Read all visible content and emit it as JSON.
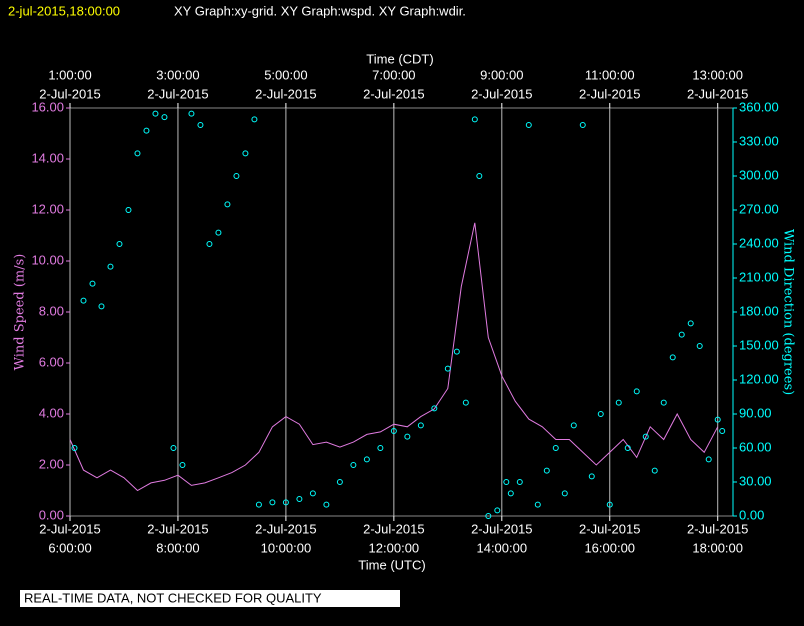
{
  "chart_data": {
    "type": "line_scatter",
    "timestamp": "2-jul-2015,18:00:00",
    "title": "XY Graph:xy-grid.  XY Graph:wspd.  XY Graph:wdir.",
    "x_label": "Time (UTC)",
    "x2_label": "Time (CDT)",
    "y_label": "Wind Speed (m/s)",
    "y2_label": "Wind Direction (degrees)",
    "footer": "REAL-TIME DATA, NOT CHECKED FOR QUALITY",
    "grid": true,
    "xlim": [
      "2015-07-02T06:00",
      "2015-07-02T18:17"
    ],
    "xticks": [
      {
        "value": "2015-07-02T06:00",
        "label": [
          "2-Jul-2015",
          "6:00:00"
        ]
      },
      {
        "value": "2015-07-02T08:00",
        "label": [
          "2-Jul-2015",
          "8:00:00"
        ]
      },
      {
        "value": "2015-07-02T10:00",
        "label": [
          "2-Jul-2015",
          "10:00:00"
        ]
      },
      {
        "value": "2015-07-02T12:00",
        "label": [
          "2-Jul-2015",
          "12:00:00"
        ]
      },
      {
        "value": "2015-07-02T14:00",
        "label": [
          "2-Jul-2015",
          "14:00:00"
        ]
      },
      {
        "value": "2015-07-02T16:00",
        "label": [
          "2-Jul-2015",
          "16:00:00"
        ]
      },
      {
        "value": "2015-07-02T18:00",
        "label": [
          "2-Jul-2015",
          "18:00:00"
        ]
      }
    ],
    "x2ticks": [
      {
        "value": "2015-07-02T06:00",
        "label": [
          "1:00:00",
          "2-Jul-2015"
        ]
      },
      {
        "value": "2015-07-02T08:00",
        "label": [
          "3:00:00",
          "2-Jul-2015"
        ]
      },
      {
        "value": "2015-07-02T10:00",
        "label": [
          "5:00:00",
          "2-Jul-2015"
        ]
      },
      {
        "value": "2015-07-02T12:00",
        "label": [
          "7:00:00",
          "2-Jul-2015"
        ]
      },
      {
        "value": "2015-07-02T14:00",
        "label": [
          "9:00:00",
          "2-Jul-2015"
        ]
      },
      {
        "value": "2015-07-02T16:00",
        "label": [
          "11:00:00",
          "2-Jul-2015"
        ]
      },
      {
        "value": "2015-07-02T18:00",
        "label": [
          "13:00:00",
          "2-Jul-2015"
        ]
      }
    ],
    "ylim": [
      0,
      16
    ],
    "yticks": [
      {
        "value": 0,
        "label": "0.00"
      },
      {
        "value": 2,
        "label": "2.00"
      },
      {
        "value": 4,
        "label": "4.00"
      },
      {
        "value": 6,
        "label": "6.00"
      },
      {
        "value": 8,
        "label": "8.00"
      },
      {
        "value": 10,
        "label": "10.00"
      },
      {
        "value": 12,
        "label": "12.00"
      },
      {
        "value": 14,
        "label": "14.00"
      },
      {
        "value": 16,
        "label": "16.00"
      }
    ],
    "y2lim": [
      0,
      360
    ],
    "y2ticks": [
      {
        "value": 0,
        "label": "0.00"
      },
      {
        "value": 30,
        "label": "30.00"
      },
      {
        "value": 60,
        "label": "60.00"
      },
      {
        "value": 90,
        "label": "90.00"
      },
      {
        "value": 120,
        "label": "120.00"
      },
      {
        "value": 150,
        "label": "150.00"
      },
      {
        "value": 180,
        "label": "180.00"
      },
      {
        "value": 210,
        "label": "210.00"
      },
      {
        "value": 240,
        "label": "240.00"
      },
      {
        "value": 270,
        "label": "270.00"
      },
      {
        "value": 300,
        "label": "300.00"
      },
      {
        "value": 330,
        "label": "330.00"
      },
      {
        "value": 360,
        "label": "360.00"
      }
    ],
    "series": [
      {
        "kind": "line",
        "color": "#e07be0",
        "x": [
          "2015-07-02T06:00",
          "2015-07-02T06:15",
          "2015-07-02T06:30",
          "2015-07-02T06:45",
          "2015-07-02T07:00",
          "2015-07-02T07:15",
          "2015-07-02T07:30",
          "2015-07-02T07:45",
          "2015-07-02T08:00",
          "2015-07-02T08:15",
          "2015-07-02T08:30",
          "2015-07-02T08:45",
          "2015-07-02T09:00",
          "2015-07-02T09:15",
          "2015-07-02T09:30",
          "2015-07-02T09:45",
          "2015-07-02T10:00",
          "2015-07-02T10:15",
          "2015-07-02T10:30",
          "2015-07-02T10:45",
          "2015-07-02T11:00",
          "2015-07-02T11:15",
          "2015-07-02T11:30",
          "2015-07-02T11:45",
          "2015-07-02T12:00",
          "2015-07-02T12:15",
          "2015-07-02T12:30",
          "2015-07-02T12:45",
          "2015-07-02T13:00",
          "2015-07-02T13:15",
          "2015-07-02T13:30",
          "2015-07-02T13:45",
          "2015-07-02T14:00",
          "2015-07-02T14:15",
          "2015-07-02T14:30",
          "2015-07-02T14:45",
          "2015-07-02T15:00",
          "2015-07-02T15:15",
          "2015-07-02T15:30",
          "2015-07-02T15:45",
          "2015-07-02T16:00",
          "2015-07-02T16:15",
          "2015-07-02T16:30",
          "2015-07-02T16:45",
          "2015-07-02T17:00",
          "2015-07-02T17:15",
          "2015-07-02T17:30",
          "2015-07-02T17:45",
          "2015-07-02T18:00"
        ],
        "values": [
          3.0,
          1.8,
          1.5,
          1.8,
          1.5,
          1.0,
          1.3,
          1.4,
          1.6,
          1.2,
          1.3,
          1.5,
          1.7,
          2.0,
          2.5,
          3.5,
          3.9,
          3.6,
          2.8,
          2.9,
          2.7,
          2.9,
          3.2,
          3.3,
          3.6,
          3.5,
          3.9,
          4.2,
          5.0,
          9.0,
          11.5,
          7.0,
          5.5,
          4.5,
          3.8,
          3.5,
          3.0,
          3.0,
          2.5,
          2.0,
          2.5,
          3.0,
          2.3,
          3.5,
          3.0,
          4.0,
          3.0,
          2.5,
          3.5
        ]
      },
      {
        "kind": "scatter",
        "axis": "y2",
        "color": "#00ffff",
        "x": [
          "2015-07-02T06:05",
          "2015-07-02T06:15",
          "2015-07-02T06:25",
          "2015-07-02T06:35",
          "2015-07-02T06:45",
          "2015-07-02T06:55",
          "2015-07-02T07:05",
          "2015-07-02T07:15",
          "2015-07-02T07:25",
          "2015-07-02T07:35",
          "2015-07-02T07:45",
          "2015-07-02T07:55",
          "2015-07-02T08:05",
          "2015-07-02T08:15",
          "2015-07-02T08:25",
          "2015-07-02T08:35",
          "2015-07-02T08:45",
          "2015-07-02T08:55",
          "2015-07-02T09:05",
          "2015-07-02T09:15",
          "2015-07-02T09:25",
          "2015-07-02T09:30",
          "2015-07-02T09:45",
          "2015-07-02T10:00",
          "2015-07-02T10:15",
          "2015-07-02T10:30",
          "2015-07-02T10:45",
          "2015-07-02T11:00",
          "2015-07-02T11:15",
          "2015-07-02T11:30",
          "2015-07-02T11:45",
          "2015-07-02T12:00",
          "2015-07-02T12:15",
          "2015-07-02T12:30",
          "2015-07-02T12:45",
          "2015-07-02T13:00",
          "2015-07-02T13:10",
          "2015-07-02T13:20",
          "2015-07-02T13:30",
          "2015-07-02T13:35",
          "2015-07-02T13:45",
          "2015-07-02T13:55",
          "2015-07-02T14:05",
          "2015-07-02T14:10",
          "2015-07-02T14:20",
          "2015-07-02T14:30",
          "2015-07-02T14:40",
          "2015-07-02T14:50",
          "2015-07-02T15:00",
          "2015-07-02T15:10",
          "2015-07-02T15:20",
          "2015-07-02T15:30",
          "2015-07-02T15:40",
          "2015-07-02T15:50",
          "2015-07-02T16:00",
          "2015-07-02T16:10",
          "2015-07-02T16:20",
          "2015-07-02T16:30",
          "2015-07-02T16:40",
          "2015-07-02T16:50",
          "2015-07-02T17:00",
          "2015-07-02T17:10",
          "2015-07-02T17:20",
          "2015-07-02T17:30",
          "2015-07-02T17:40",
          "2015-07-02T17:50",
          "2015-07-02T18:00",
          "2015-07-02T18:05"
        ],
        "values": [
          60,
          190,
          205,
          185,
          220,
          240,
          270,
          320,
          340,
          355,
          352,
          60,
          45,
          355,
          345,
          240,
          250,
          275,
          300,
          320,
          350,
          10,
          12,
          12,
          15,
          20,
          10,
          30,
          45,
          50,
          60,
          75,
          70,
          80,
          95,
          130,
          145,
          100,
          350,
          300,
          0,
          5,
          30,
          20,
          30,
          345,
          10,
          40,
          60,
          20,
          80,
          345,
          35,
          90,
          10,
          100,
          60,
          110,
          70,
          40,
          100,
          140,
          160,
          170,
          150,
          50,
          85,
          75
        ]
      }
    ]
  }
}
